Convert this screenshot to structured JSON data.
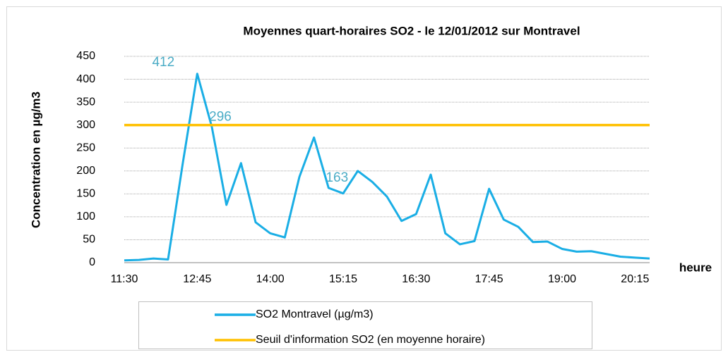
{
  "chart_data": {
    "type": "line",
    "title": "Moyennes quart-horaires SO2  -  le 12/01/2012 sur Montravel",
    "y_label": "Concentration en µg/m3",
    "x_label": "heure",
    "categories": [
      "11:30",
      null,
      null,
      null,
      null,
      "12:45",
      null,
      null,
      null,
      null,
      "14:00",
      null,
      null,
      null,
      null,
      "15:15",
      null,
      null,
      null,
      null,
      "16:30",
      null,
      null,
      null,
      null,
      "17:45",
      null,
      null,
      null,
      null,
      "19:00",
      null,
      null,
      null,
      null,
      "20:15",
      null
    ],
    "series": [
      {
        "name": "SO2 Montravel (µg/m3)",
        "color": "#1aaee5",
        "labeled": [
          5,
          6,
          14
        ],
        "label_color": "#4bacc6",
        "values": [
          5,
          6,
          9,
          7,
          215,
          412,
          296,
          126,
          217,
          88,
          64,
          55,
          187,
          273,
          163,
          151,
          200,
          176,
          144,
          91,
          106,
          192,
          64,
          40,
          47,
          161,
          94,
          78,
          45,
          46,
          30,
          24,
          25,
          19,
          13,
          11,
          9
        ]
      },
      {
        "name": "Seuil d'information SO2 (en moyenne horaire)",
        "color": "#ffc000",
        "values": [
          300,
          300,
          300,
          300,
          300,
          300,
          300,
          300,
          300,
          300,
          300,
          300,
          300,
          300,
          300,
          300,
          300,
          300,
          300,
          300,
          300,
          300,
          300,
          300,
          300,
          300,
          300,
          300,
          300,
          300,
          300,
          300,
          300,
          300,
          300,
          300,
          300
        ]
      }
    ],
    "ylim": [
      0,
      450
    ],
    "yticks": [
      0,
      50,
      100,
      150,
      200,
      250,
      300,
      350,
      400,
      450
    ],
    "grid": true
  }
}
